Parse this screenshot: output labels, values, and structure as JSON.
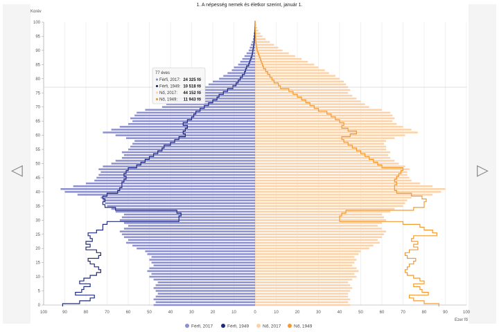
{
  "nav": {
    "prev_icon": "◁",
    "next_icon": "▷"
  },
  "colors": {
    "male_2017": "#8c8fd0",
    "male_1949": "#1f2a7a",
    "female_2017": "#fcd3a8",
    "female_1949": "#f39a2e"
  },
  "tooltip": {
    "title": "77 éves",
    "rows": [
      {
        "label": "Férfi, 2017:",
        "value": "24 325 fő",
        "color": "#8c8fd0"
      },
      {
        "label": "Férfi, 1949:",
        "value": "10 518 fő",
        "color": "#1f2a7a"
      },
      {
        "label": "Nő, 2017:",
        "value": "44 152 fő",
        "color": "#fcd3a8"
      },
      {
        "label": "Nő, 1949:",
        "value": "11 943 fő",
        "color": "#f39a2e"
      }
    ]
  },
  "chart_data": {
    "type": "bar",
    "title": "1. A népesség nemek és életkor szerint, január 1.",
    "xlabel": "Ezer fő",
    "ylabel": "Korév",
    "xlim": [
      -100,
      100
    ],
    "ylim": [
      0,
      100
    ],
    "x_ticks": [
      "100",
      "90",
      "80",
      "70",
      "60",
      "50",
      "40",
      "30",
      "20",
      "10",
      "0",
      "10",
      "20",
      "30",
      "40",
      "50",
      "60",
      "70",
      "80",
      "90",
      "100"
    ],
    "y_ticks": [
      "0",
      "5",
      "10",
      "15",
      "20",
      "25",
      "30",
      "35",
      "40",
      "45",
      "50",
      "55",
      "60",
      "65",
      "70",
      "75",
      "80",
      "85",
      "90",
      "95",
      "100"
    ],
    "legend": [
      "Férfi, 2017",
      "Férfi, 1949",
      "Nő, 2017",
      "Nő, 1949"
    ],
    "legend_position": "bottom",
    "grid": true,
    "ages": [
      0,
      1,
      2,
      3,
      4,
      5,
      6,
      7,
      8,
      9,
      10,
      11,
      12,
      13,
      14,
      15,
      16,
      17,
      18,
      19,
      20,
      21,
      22,
      23,
      24,
      25,
      26,
      27,
      28,
      29,
      30,
      31,
      32,
      33,
      34,
      35,
      36,
      37,
      38,
      39,
      40,
      41,
      42,
      43,
      44,
      45,
      46,
      47,
      48,
      49,
      50,
      51,
      52,
      53,
      54,
      55,
      56,
      57,
      58,
      59,
      60,
      61,
      62,
      63,
      64,
      65,
      66,
      67,
      68,
      69,
      70,
      71,
      72,
      73,
      74,
      75,
      76,
      77,
      78,
      79,
      80,
      81,
      82,
      83,
      84,
      85,
      86,
      87,
      88,
      89,
      90,
      91,
      92,
      93,
      94,
      95,
      96,
      97,
      98,
      99,
      100
    ],
    "series": [
      {
        "name": "Férfi, 2017",
        "values": [
          48,
          47,
          48,
          47,
          46,
          47,
          48,
          47,
          46,
          48,
          50,
          49,
          51,
          50,
          48,
          49,
          50,
          49,
          51,
          52,
          56,
          58,
          61,
          60,
          62,
          63,
          64,
          62,
          60,
          62,
          64,
          63,
          62,
          66,
          68,
          70,
          71,
          72,
          73,
          84,
          90,
          92,
          86,
          80,
          76,
          75,
          74,
          73,
          74,
          72,
          68,
          66,
          63,
          62,
          63,
          60,
          59,
          58,
          57,
          61,
          66,
          72,
          68,
          64,
          60,
          58,
          59,
          57,
          56,
          52,
          44,
          42,
          40,
          38,
          34,
          30,
          27,
          24,
          22,
          20,
          17,
          15,
          13,
          11,
          10,
          8,
          7,
          6,
          5,
          4,
          3,
          2.5,
          2,
          1.5,
          1,
          0.8,
          0.6,
          0.4,
          0.3,
          0.2,
          0.1
        ]
      },
      {
        "name": "Férfi, 1949",
        "values": [
          91,
          83,
          78,
          76,
          85,
          82,
          81,
          78,
          83,
          81,
          78,
          75,
          73,
          74,
          76,
          78,
          79,
          74,
          73,
          75,
          80,
          78,
          80,
          77,
          78,
          79,
          75,
          72,
          72,
          70,
          36,
          36,
          35,
          37,
          66,
          71,
          72,
          71,
          72,
          70,
          65,
          64,
          63,
          63,
          62,
          61,
          62,
          61,
          60,
          56,
          54,
          52,
          50,
          48,
          46,
          44,
          43,
          40,
          38,
          36,
          33,
          34,
          33,
          32,
          34,
          32,
          30,
          29,
          28,
          26,
          24,
          22,
          20,
          18,
          17,
          15,
          13,
          10.5,
          9,
          8,
          7,
          6,
          5,
          4.5,
          4,
          3,
          2.5,
          2,
          1.5,
          1.2,
          1,
          0.8,
          0.6,
          0.4,
          0.3,
          0.2,
          0.15,
          0.1,
          0.05,
          0.02,
          0
        ]
      },
      {
        "name": "Nő, 2017",
        "values": [
          45,
          44,
          45,
          44,
          44,
          45,
          46,
          45,
          44,
          46,
          48,
          47,
          49,
          48,
          46,
          47,
          48,
          47,
          49,
          50,
          54,
          56,
          59,
          58,
          60,
          61,
          62,
          60,
          58,
          60,
          62,
          61,
          60,
          64,
          66,
          70,
          71,
          72,
          74,
          84,
          88,
          90,
          84,
          78,
          74,
          73,
          72,
          72,
          73,
          71,
          68,
          66,
          64,
          63,
          64,
          62,
          62,
          61,
          62,
          66,
          71,
          77,
          74,
          70,
          67,
          65,
          66,
          65,
          64,
          60,
          54,
          52,
          50,
          48,
          46,
          44,
          45,
          44,
          43,
          42,
          40,
          38,
          35,
          33,
          30,
          28,
          25,
          22,
          19,
          16,
          13,
          11,
          9,
          7,
          5,
          3.5,
          2.5,
          1.5,
          1,
          0.6,
          0.3
        ]
      },
      {
        "name": "Nő, 1949",
        "values": [
          87,
          80,
          75,
          73,
          82,
          79,
          78,
          75,
          80,
          78,
          75,
          72,
          71,
          72,
          73,
          75,
          76,
          72,
          71,
          73,
          77,
          75,
          77,
          74,
          75,
          86,
          84,
          80,
          78,
          70,
          40,
          40,
          41,
          43,
          75,
          80,
          80,
          81,
          79,
          74,
          67,
          66,
          66,
          67,
          66,
          67,
          68,
          69,
          70,
          60,
          58,
          56,
          54,
          52,
          50,
          48,
          46,
          44,
          42,
          41,
          45,
          48,
          44,
          41,
          42,
          40,
          38,
          36,
          34,
          30,
          28,
          26,
          24,
          22,
          20,
          18,
          16,
          12,
          11,
          9,
          8,
          7,
          6,
          5,
          4,
          3.5,
          3,
          2.5,
          2,
          1.5,
          1,
          0.8,
          0.6,
          0.4,
          0.3,
          0.2,
          0.15,
          0.1,
          0.05,
          0.02,
          0
        ]
      }
    ]
  }
}
